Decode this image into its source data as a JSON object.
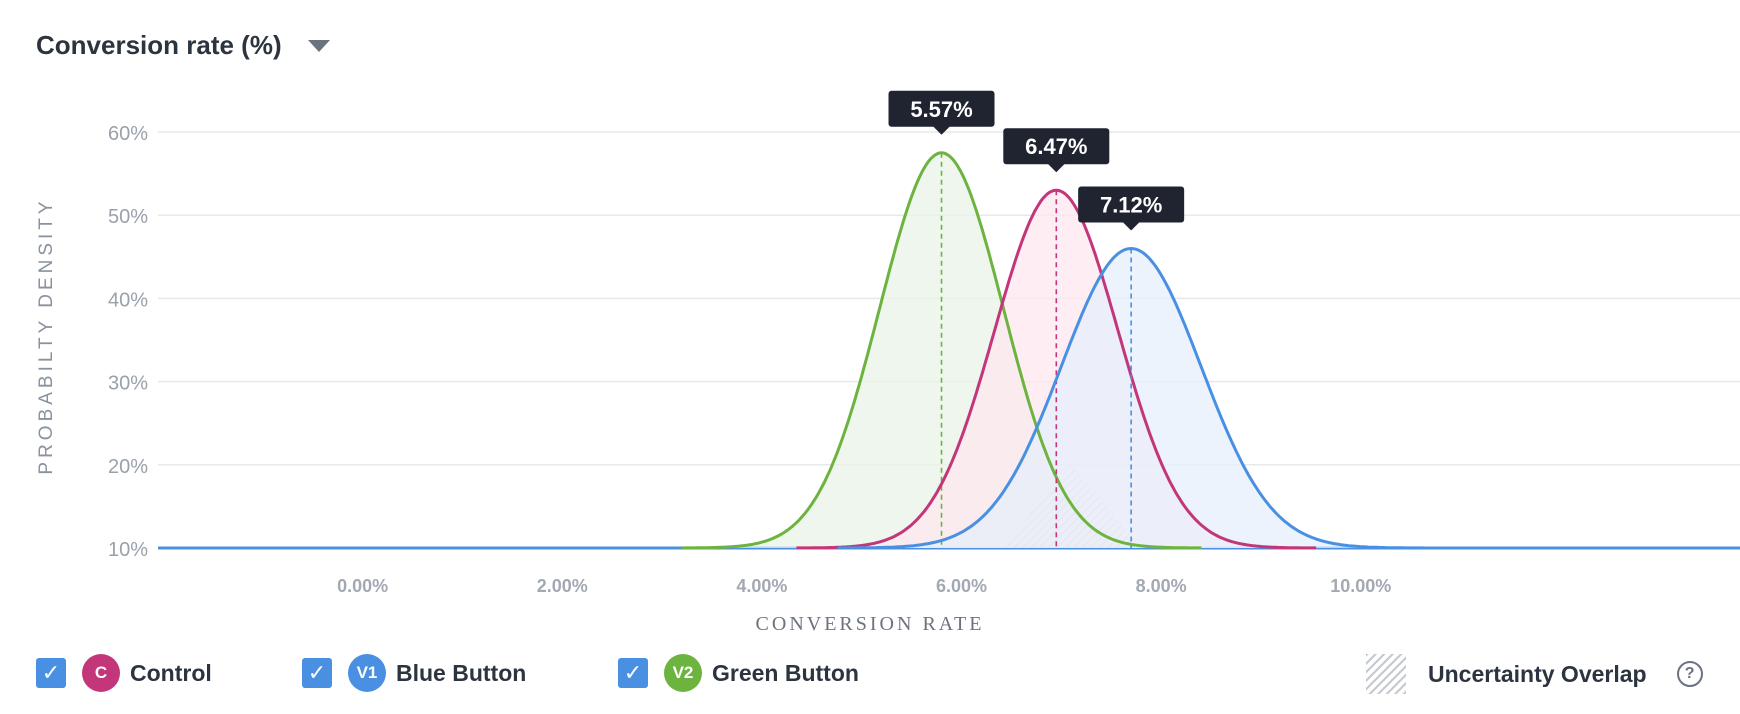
{
  "header": {
    "title": "Conversion rate (%)"
  },
  "chart_data": {
    "type": "area",
    "xlabel": "CONVERSION RATE",
    "ylabel": "PROBABILTY DENSITY",
    "x_tick_labels": [
      "0.00%",
      "2.00%",
      "4.00%",
      "6.00%",
      "8.00%",
      "10.00%"
    ],
    "x_ticks": [
      0,
      2,
      4,
      6,
      8,
      10
    ],
    "y_tick_labels": [
      "10%",
      "20%",
      "30%",
      "40%",
      "50%",
      "60%"
    ],
    "y_ticks": [
      10,
      20,
      30,
      40,
      50,
      60
    ],
    "xlim": [
      -2.05,
      13.8
    ],
    "ylim": [
      10,
      60
    ],
    "grid": true,
    "legend_position": "bottom",
    "series": [
      {
        "name": "Control",
        "badge": "C",
        "color": "#c3377a",
        "fill": "#fde8ef",
        "peak_x": 6.95,
        "peak_y": 53.0,
        "sd": 0.62,
        "label": "6.47%"
      },
      {
        "name": "Blue Button",
        "badge": "V1",
        "color": "#4a90e2",
        "fill": "#e4eefb",
        "peak_x": 7.7,
        "peak_y": 46.0,
        "sd": 0.7,
        "label": "7.12%"
      },
      {
        "name": "Green Button",
        "badge": "V2",
        "color": "#6db33f",
        "fill": "#e9f2e6",
        "peak_x": 5.8,
        "peak_y": 57.5,
        "sd": 0.62,
        "label": "5.57%"
      }
    ]
  },
  "legend": {
    "items": [
      {
        "label": "Control",
        "badge": "C",
        "color": "#c3377a"
      },
      {
        "label": "Blue Button",
        "badge": "V1",
        "color": "#4a90e2"
      },
      {
        "label": "Green Button",
        "badge": "V2",
        "color": "#6db33f"
      }
    ],
    "overlap_label": "Uncertainty Overlap"
  }
}
